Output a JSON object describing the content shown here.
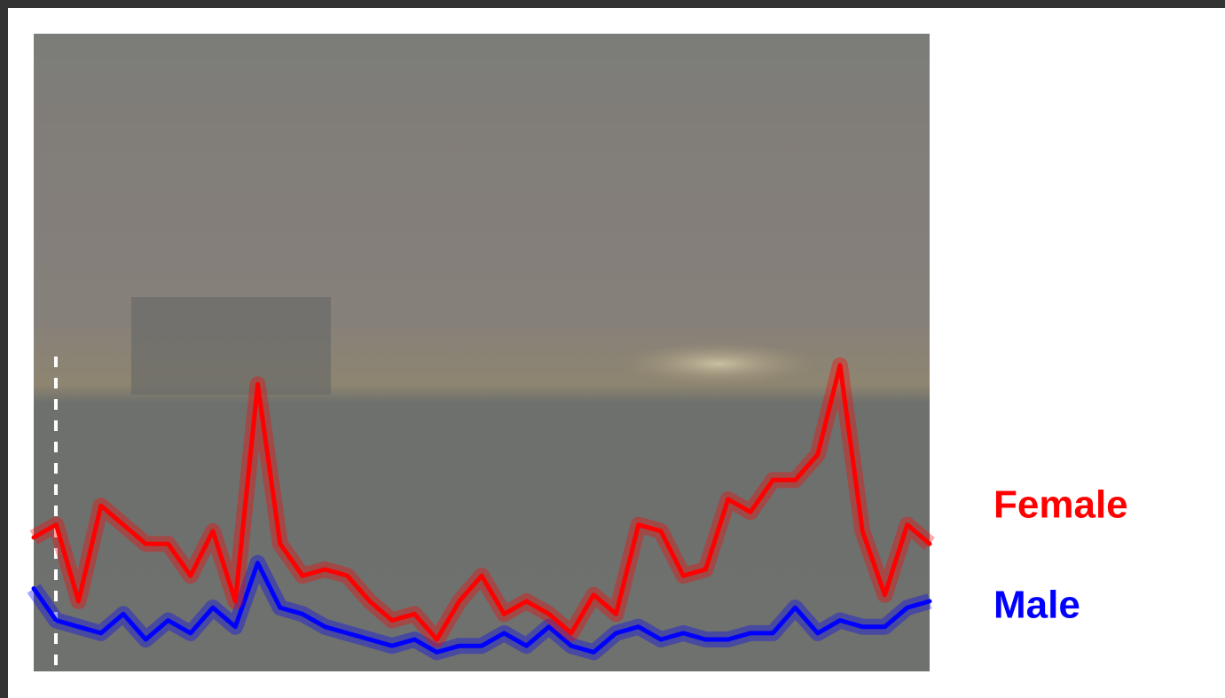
{
  "chart_data": {
    "type": "line",
    "x": [
      0,
      2.5,
      5,
      7.5,
      10,
      12.5,
      15,
      17.5,
      20,
      22.5,
      25,
      27.5,
      30,
      32.5,
      35,
      37.5,
      40,
      42.5,
      45,
      47.5,
      50,
      52.5,
      55,
      57.5,
      60,
      62.5,
      65,
      67.5,
      70,
      72.5,
      75,
      77.5,
      80,
      82.5,
      85,
      87.5,
      90,
      92.5,
      95,
      97.5,
      100
    ],
    "xlim": [
      0,
      100
    ],
    "ylim": [
      0,
      100
    ],
    "series": [
      {
        "name": "Female",
        "color": "#ff0000",
        "values": [
          21,
          23,
          11,
          26,
          23,
          20,
          20,
          15,
          22,
          11,
          45,
          20,
          15,
          16,
          15,
          11,
          8,
          9,
          5,
          11,
          15,
          9,
          11,
          9,
          6,
          12,
          9,
          23,
          22,
          15,
          16,
          27,
          25,
          30,
          30,
          34,
          48,
          22,
          12,
          23,
          20
        ]
      },
      {
        "name": "Male",
        "color": "#0000ff",
        "values": [
          13,
          8,
          7,
          6,
          9,
          5,
          8,
          6,
          10,
          7,
          17,
          10,
          9,
          7,
          6,
          5,
          4,
          5,
          3,
          4,
          4,
          6,
          4,
          7,
          4,
          3,
          6,
          7,
          5,
          6,
          5,
          5,
          6,
          6,
          10,
          6,
          8,
          7,
          7,
          10,
          11
        ]
      }
    ]
  }
}
